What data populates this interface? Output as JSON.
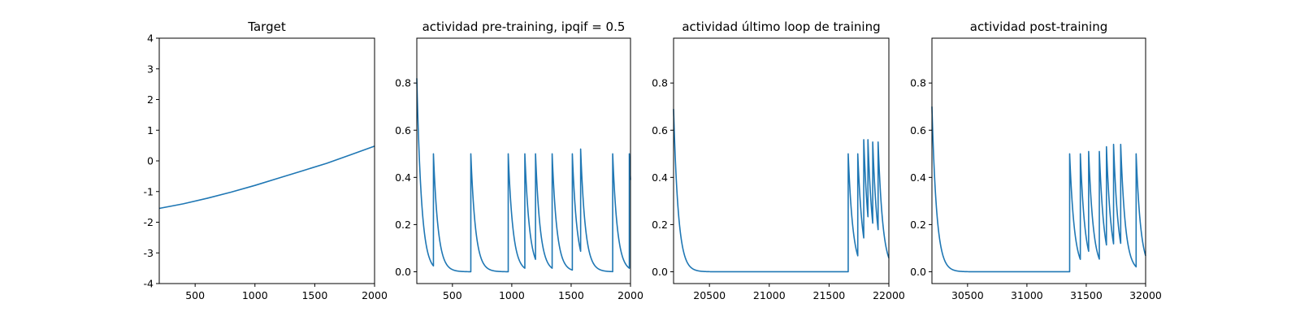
{
  "chart_data": [
    {
      "type": "line",
      "title": "Target",
      "xlabel": "",
      "ylabel": "",
      "xlim": [
        200,
        2000
      ],
      "ylim": [
        -4,
        4
      ],
      "xticks": [
        500,
        1000,
        1500,
        2000
      ],
      "yticks": [
        -4,
        -3,
        -2,
        -1,
        0,
        1,
        2,
        3,
        4
      ],
      "grid": false,
      "series": [
        {
          "x": [
            200,
            400,
            600,
            800,
            1000,
            1200,
            1400,
            1600,
            1800,
            2000
          ],
          "y": [
            -1.55,
            -1.4,
            -1.22,
            -1.02,
            -0.8,
            -0.56,
            -0.32,
            -0.08,
            0.2,
            0.48
          ]
        }
      ]
    },
    {
      "type": "line",
      "title": "actividad pre-training, ipqif = 0.5",
      "xlabel": "",
      "ylabel": "",
      "xlim": [
        200,
        2000
      ],
      "ylim": [
        -0.05,
        0.99
      ],
      "xticks": [
        500,
        1000,
        1500,
        2000
      ],
      "yticks": [
        0.0,
        0.2,
        0.4,
        0.6,
        0.8
      ],
      "grid": false,
      "series": [
        {
          "spike_times": [
            340,
            655,
            970,
            1110,
            1200,
            1340,
            1510,
            1580,
            1850,
            1990
          ],
          "spike_peaks": [
            0.5,
            0.5,
            0.5,
            0.5,
            0.5,
            0.5,
            0.5,
            0.52,
            0.5,
            0.5
          ],
          "initial_value": 0.82,
          "decay_time": 40
        }
      ]
    },
    {
      "type": "line",
      "title": "actividad último loop de training",
      "xlabel": "",
      "ylabel": "",
      "xlim": [
        20200,
        22000
      ],
      "ylim": [
        -0.05,
        0.99
      ],
      "xticks": [
        20500,
        21000,
        21500,
        22000
      ],
      "yticks": [
        0.0,
        0.2,
        0.4,
        0.6,
        0.8
      ],
      "grid": false,
      "series": [
        {
          "spike_times": [
            21660,
            21740,
            21790,
            21825,
            21865,
            21910
          ],
          "spike_peaks": [
            0.5,
            0.5,
            0.56,
            0.56,
            0.55,
            0.55
          ],
          "initial_value": 0.69,
          "decay_time": 40
        }
      ]
    },
    {
      "type": "line",
      "title": "actividad post-training",
      "xlabel": "",
      "ylabel": "",
      "xlim": [
        30200,
        32000
      ],
      "ylim": [
        -0.05,
        0.99
      ],
      "xticks": [
        30500,
        31000,
        31500,
        32000
      ],
      "yticks": [
        0.0,
        0.2,
        0.4,
        0.6,
        0.8
      ],
      "grid": false,
      "series": [
        {
          "spike_times": [
            31360,
            31450,
            31520,
            31610,
            31670,
            31730,
            31790,
            31920
          ],
          "spike_peaks": [
            0.5,
            0.5,
            0.51,
            0.51,
            0.53,
            0.54,
            0.54,
            0.5
          ],
          "initial_value": 0.7,
          "decay_time": 40
        }
      ]
    }
  ],
  "colors": {
    "series": "#1f77b4",
    "axes": "#000000",
    "background": "#ffffff"
  }
}
